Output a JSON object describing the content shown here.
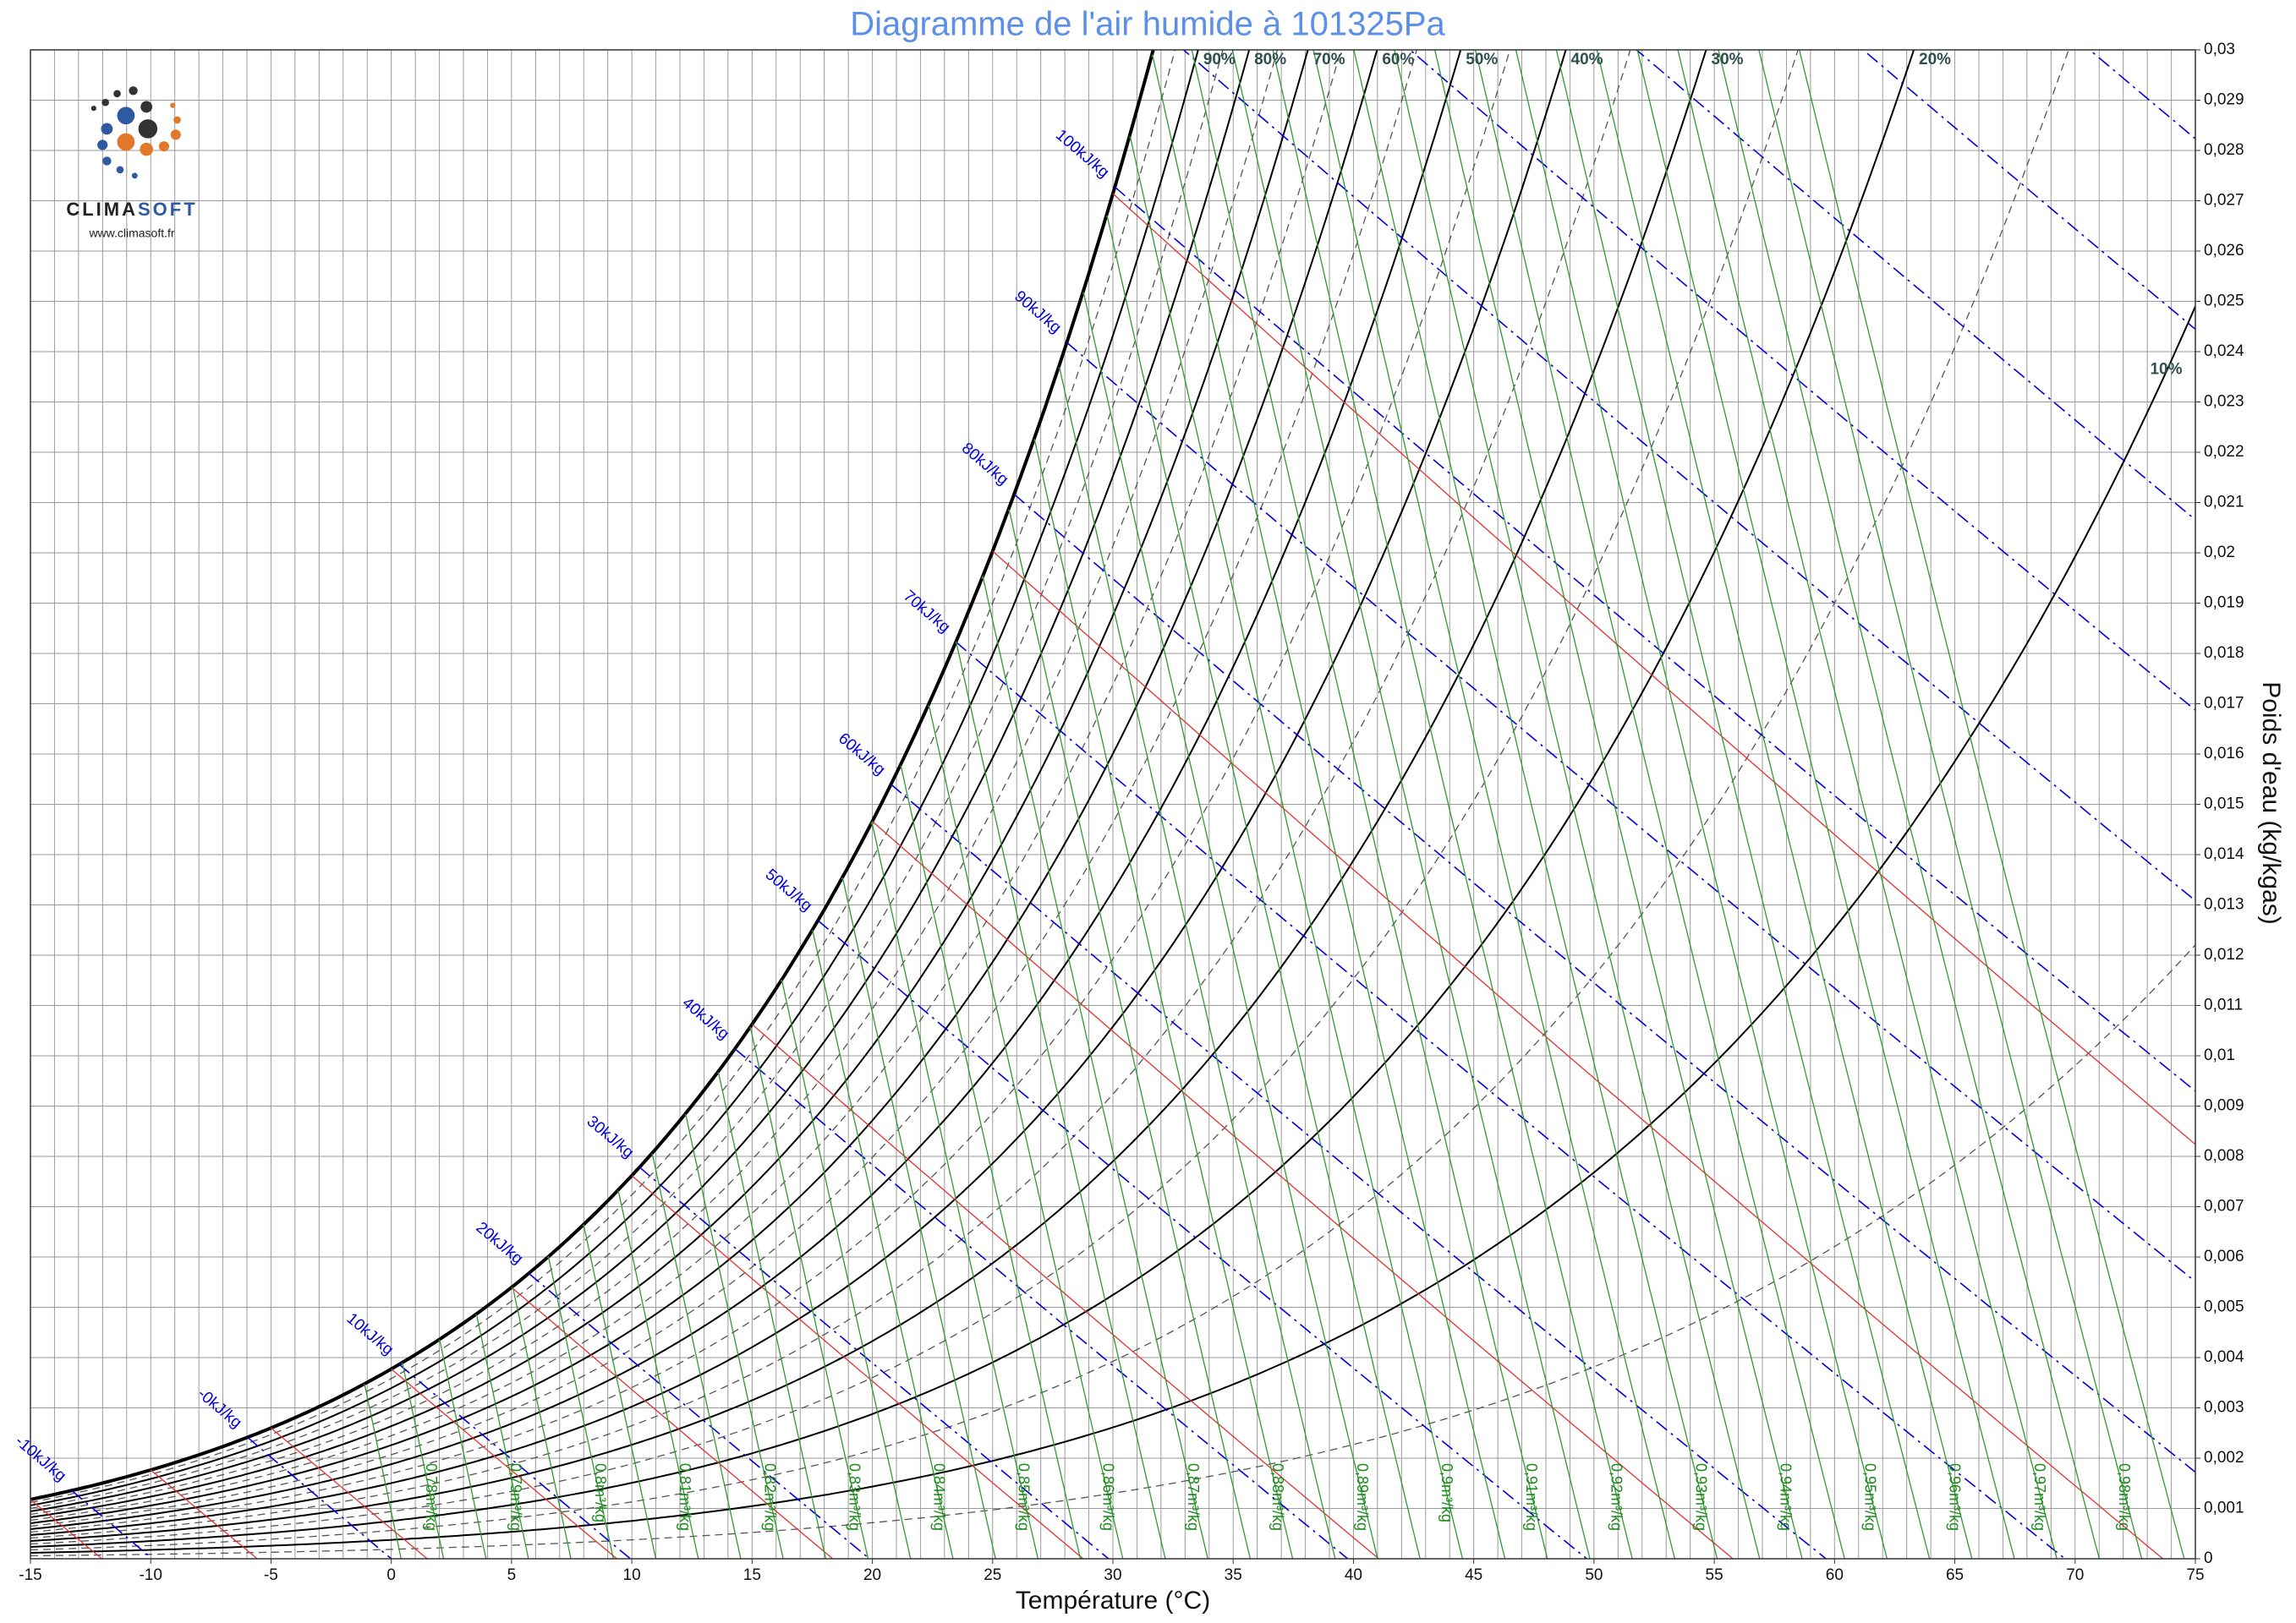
{
  "chart_data": {
    "type": "psychrometric",
    "title": "Diagramme de l'air humide à 101325Pa",
    "pressure_pa": 101325,
    "x_label": "Température (°C)",
    "y_label": "Poids d'eau (kg/kgas)",
    "xlim": [
      -15,
      75
    ],
    "ylim": [
      0,
      0.03
    ],
    "xticks": [
      -15,
      -10,
      -5,
      0,
      5,
      10,
      15,
      20,
      25,
      30,
      35,
      40,
      45,
      50,
      55,
      60,
      65,
      70,
      75
    ],
    "xgrid": [
      -15,
      -14,
      -13,
      -12,
      -11,
      -10,
      -9,
      -8,
      -7,
      -6,
      -5,
      -4,
      -3,
      -2,
      -1,
      0,
      1,
      2,
      3,
      4,
      5,
      6,
      7,
      8,
      9,
      10,
      11,
      12,
      13,
      14,
      15,
      16,
      17,
      18,
      19,
      20,
      21,
      22,
      23,
      24,
      25,
      26,
      27,
      28,
      29,
      30,
      31,
      32,
      33,
      34,
      35,
      36,
      37,
      38,
      39,
      40,
      41,
      42,
      43,
      44,
      45,
      46,
      47,
      48,
      49,
      50,
      51,
      52,
      53,
      54,
      55,
      56,
      57,
      58,
      59,
      60,
      61,
      62,
      63,
      64,
      65,
      66,
      67,
      68,
      69,
      70,
      71,
      72,
      73,
      74,
      75
    ],
    "yticks": [
      0,
      {
        "value": 0.001,
        "label": "0,001"
      },
      {
        "value": 0.002,
        "label": "0,002"
      },
      {
        "value": 0.003,
        "label": "0,003"
      },
      {
        "value": 0.004,
        "label": "0,004"
      },
      {
        "value": 0.005,
        "label": "0,005"
      },
      {
        "value": 0.006,
        "label": "0,006"
      },
      {
        "value": 0.007,
        "label": "0,007"
      },
      {
        "value": 0.008,
        "label": "0,008"
      },
      {
        "value": 0.009,
        "label": "0,009"
      },
      {
        "value": 0.01,
        "label": "0,01"
      },
      {
        "value": 0.011,
        "label": "0,011"
      },
      {
        "value": 0.012,
        "label": "0,012"
      },
      {
        "value": 0.013,
        "label": "0,013"
      },
      {
        "value": 0.014,
        "label": "0,014"
      },
      {
        "value": 0.015,
        "label": "0,015"
      },
      {
        "value": 0.016,
        "label": "0,016"
      },
      {
        "value": 0.017,
        "label": "0,017"
      },
      {
        "value": 0.018,
        "label": "0,018"
      },
      {
        "value": 0.019,
        "label": "0,019"
      },
      {
        "value": 0.02,
        "label": "0,02"
      },
      {
        "value": 0.021,
        "label": "0,021"
      },
      {
        "value": 0.022,
        "label": "0,022"
      },
      {
        "value": 0.023,
        "label": "0,023"
      },
      {
        "value": 0.024,
        "label": "0,024"
      },
      {
        "value": 0.025,
        "label": "0,025"
      },
      {
        "value": 0.026,
        "label": "0,026"
      },
      {
        "value": 0.027,
        "label": "0,027"
      },
      {
        "value": 0.028,
        "label": "0,028"
      },
      {
        "value": 0.029,
        "label": "0,029"
      },
      {
        "value": 0.03,
        "label": "0,03"
      }
    ],
    "rh_curves": {
      "values": [
        100,
        90,
        80,
        70,
        60,
        50,
        40,
        30,
        20,
        10
      ],
      "labels": [
        null,
        "90%",
        "80%",
        "70%",
        "60%",
        "50%",
        "40%",
        "30%",
        "20%",
        "10%"
      ]
    },
    "rh_curves_dashed": [
      95,
      85,
      75,
      65,
      55,
      45,
      35,
      25,
      15,
      5
    ],
    "enthalpy": {
      "values": [
        -10,
        0,
        10,
        20,
        30,
        40,
        50,
        60,
        70,
        80,
        90,
        100,
        110,
        120,
        130,
        140,
        150
      ],
      "labels": [
        "-10kJ/kg",
        "-0kJ/kg",
        "10kJ/kg",
        "20kJ/kg",
        "30kJ/kg",
        "40kJ/kg",
        "50kJ/kg",
        "60kJ/kg",
        "70kJ/kg",
        "80kJ/kg",
        "90kJ/kg",
        "100kJ/kg",
        null,
        null,
        null,
        null,
        null
      ]
    },
    "wet_bulb": [
      -15,
      -10,
      -5,
      0,
      5,
      10,
      15,
      20,
      25,
      30
    ],
    "specific_volume": {
      "values": [
        0.78,
        0.79,
        0.8,
        0.81,
        0.82,
        0.83,
        0.84,
        0.85,
        0.86,
        0.87,
        0.88,
        0.89,
        0.9,
        0.91,
        0.92,
        0.93,
        0.94,
        0.95,
        0.96,
        0.97,
        0.98
      ],
      "labels": [
        "0,78m³/kg",
        "0,79m³/kg",
        "0,8m³/kg",
        "0,81m³/kg",
        "0,82m³/kg",
        "0,83m³/kg",
        "0,84m³/kg",
        "0,85m³/kg",
        "0,86m³/kg",
        "0,87m³/kg",
        "0,88m³/kg",
        "0,89m³/kg",
        "0,9m³/kg",
        "0,91m³/kg",
        "0,92m³/kg",
        "0,93m³/kg",
        "0,94m³/kg",
        "0,95m³/kg",
        "0,96m³/kg",
        "0,97m³/kg",
        "0,98m³/kg"
      ]
    },
    "specific_volume_minor": [
      0.775,
      0.785,
      0.795,
      0.805,
      0.815,
      0.825,
      0.835,
      0.845,
      0.855,
      0.865,
      0.875,
      0.885,
      0.895,
      0.905,
      0.915,
      0.925,
      0.935,
      0.945,
      0.955,
      0.965,
      0.975,
      0.985
    ],
    "colors": {
      "title": "#5b8fe8",
      "saturation": "#000000",
      "rh": "#000000",
      "rh_dashed": "#555555",
      "enthalpy": "#0000dd",
      "wet_bulb": "#e53030",
      "specific_volume": "#2f9a2f",
      "rh_label": "#2f4f4f",
      "grid": "#9a9a9a"
    },
    "grid": true
  },
  "logo": {
    "name_part1": "CLIMA",
    "name_part2": "SOFT",
    "url": "www.climasoft.fr"
  }
}
